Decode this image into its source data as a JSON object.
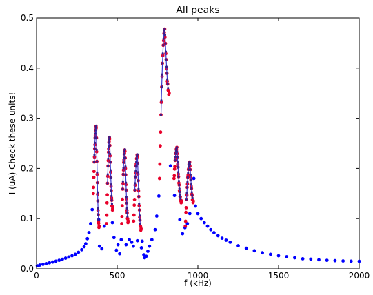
{
  "chart_data": {
    "type": "scatter",
    "title": "All peaks",
    "xlabel": "f (kHz)",
    "ylabel": "I (uA) Check these units!",
    "xlim": [
      0,
      2000
    ],
    "ylim": [
      0,
      0.5
    ],
    "xticks": [
      "0",
      "500",
      "1000",
      "1500",
      "2000"
    ],
    "yticks": [
      "0.0",
      "0.1",
      "0.2",
      "0.3",
      "0.4",
      "0.5"
    ],
    "grid": false,
    "legend": "none",
    "colors": {
      "background_series": "#0000ff",
      "peak_points": "#e8002a",
      "fit_line": "#3b3bd0",
      "fit_points": "#3a1f8a"
    },
    "series": [
      {
        "role": "background",
        "points": [
          [
            5,
            0.006
          ],
          [
            20,
            0.0075
          ],
          [
            40,
            0.009
          ],
          [
            60,
            0.0105
          ],
          [
            80,
            0.012
          ],
          [
            100,
            0.0135
          ],
          [
            120,
            0.0152
          ],
          [
            140,
            0.017
          ],
          [
            160,
            0.019
          ],
          [
            180,
            0.0212
          ],
          [
            200,
            0.0235
          ],
          [
            220,
            0.026
          ],
          [
            240,
            0.029
          ],
          [
            260,
            0.033
          ],
          [
            280,
            0.038
          ],
          [
            295,
            0.044
          ],
          [
            305,
            0.05
          ],
          [
            315,
            0.06
          ],
          [
            325,
            0.072
          ],
          [
            335,
            0.09
          ],
          [
            345,
            0.118
          ],
          [
            385,
            0.098
          ],
          [
            390,
            0.045
          ],
          [
            405,
            0.04
          ],
          [
            420,
            0.085
          ],
          [
            470,
            0.092
          ],
          [
            480,
            0.062
          ],
          [
            495,
            0.037
          ],
          [
            505,
            0.048
          ],
          [
            515,
            0.03
          ],
          [
            525,
            0.058
          ],
          [
            555,
            0.048
          ],
          [
            575,
            0.058
          ],
          [
            590,
            0.053
          ],
          [
            600,
            0.045
          ],
          [
            625,
            0.056
          ],
          [
            650,
            0.042
          ],
          [
            655,
            0.055
          ],
          [
            665,
            0.028
          ],
          [
            670,
            0.022
          ],
          [
            680,
            0.025
          ],
          [
            690,
            0.035
          ],
          [
            700,
            0.045
          ],
          [
            715,
            0.058
          ],
          [
            735,
            0.078
          ],
          [
            745,
            0.105
          ],
          [
            758,
            0.145
          ],
          [
            830,
            0.205
          ],
          [
            855,
            0.146
          ],
          [
            888,
            0.098
          ],
          [
            905,
            0.07
          ],
          [
            920,
            0.082
          ],
          [
            935,
            0.09
          ],
          [
            950,
            0.11
          ],
          [
            975,
            0.18
          ],
          [
            985,
            0.125
          ],
          [
            1000,
            0.11
          ],
          [
            1020,
            0.1
          ],
          [
            1040,
            0.092
          ],
          [
            1060,
            0.085
          ],
          [
            1080,
            0.078
          ],
          [
            1100,
            0.072
          ],
          [
            1125,
            0.066
          ],
          [
            1150,
            0.061
          ],
          [
            1175,
            0.057
          ],
          [
            1200,
            0.053
          ],
          [
            1250,
            0.046
          ],
          [
            1300,
            0.041
          ],
          [
            1350,
            0.036
          ],
          [
            1400,
            0.032
          ],
          [
            1450,
            0.029
          ],
          [
            1500,
            0.026
          ],
          [
            1550,
            0.024
          ],
          [
            1600,
            0.022
          ],
          [
            1650,
            0.02
          ],
          [
            1700,
            0.0192
          ],
          [
            1750,
            0.018
          ],
          [
            1800,
            0.017
          ],
          [
            1850,
            0.0163
          ],
          [
            1900,
            0.0157
          ],
          [
            1950,
            0.0152
          ],
          [
            2000,
            0.015
          ]
        ]
      },
      {
        "role": "peaks",
        "peaks": [
          {
            "x_start": 352,
            "x_end": 388,
            "center": 370,
            "y_min": 0.15,
            "y_left": 0.15,
            "y_right": 0.085,
            "y_max": 0.285
          },
          {
            "x_start": 434,
            "x_end": 472,
            "center": 453,
            "y_min": 0.09,
            "y_left": 0.09,
            "y_right": 0.12,
            "y_max": 0.263
          },
          {
            "x_start": 528,
            "x_end": 568,
            "center": 548,
            "y_min": 0.09,
            "y_left": 0.09,
            "y_right": 0.095,
            "y_max": 0.238
          },
          {
            "x_start": 602,
            "x_end": 648,
            "center": 625,
            "y_min": 0.08,
            "y_left": 0.095,
            "y_right": 0.08,
            "y_max": 0.228
          },
          {
            "x_start": 762,
            "x_end": 822,
            "center": 795,
            "y_min": 0.18,
            "y_left": 0.18,
            "y_right": 0.35,
            "y_max": 0.478
          },
          {
            "x_start": 852,
            "x_end": 898,
            "center": 870,
            "y_min": 0.135,
            "y_left": 0.18,
            "y_right": 0.135,
            "y_max": 0.242
          },
          {
            "x_start": 922,
            "x_end": 972,
            "center": 950,
            "y_min": 0.085,
            "y_left": 0.085,
            "y_right": 0.135,
            "y_max": 0.213
          }
        ]
      }
    ]
  }
}
